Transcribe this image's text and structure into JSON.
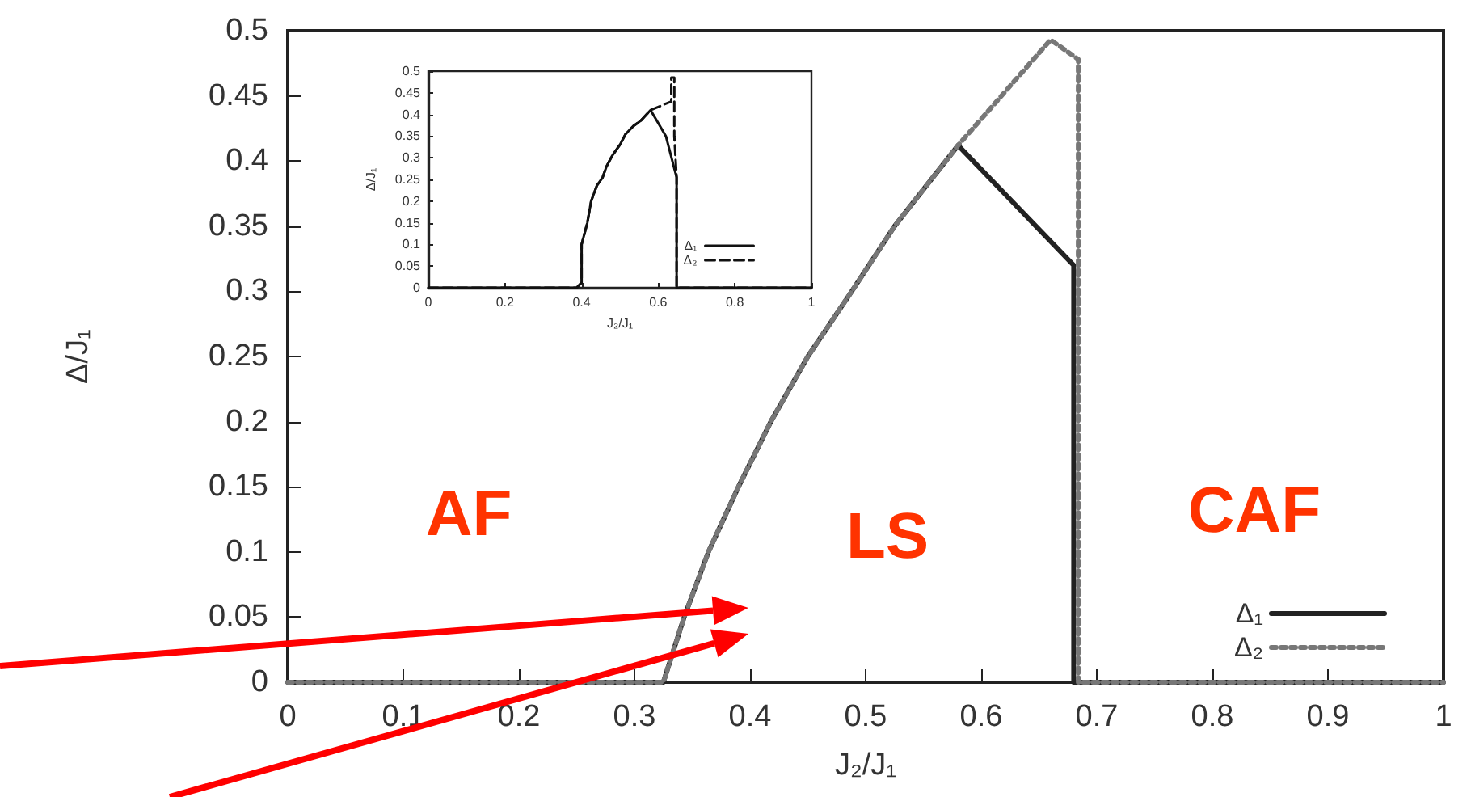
{
  "chart_data": [
    {
      "type": "line",
      "xlabel": "J₂/J₁",
      "ylabel": "Δ/J₁",
      "xlim": [
        0,
        1
      ],
      "ylim": [
        0,
        0.5
      ],
      "xticks": [
        0,
        0.1,
        0.2,
        0.3,
        0.4,
        0.5,
        0.6,
        0.7,
        0.8,
        0.9,
        1
      ],
      "yticks": [
        0,
        0.05,
        0.1,
        0.15,
        0.2,
        0.25,
        0.3,
        0.35,
        0.4,
        0.45,
        0.5
      ],
      "grid": false,
      "legend": "bottom right",
      "marker": "none",
      "annotations": [
        "AF",
        "LS",
        "CAF"
      ],
      "series": [
        {
          "name": "Δ₁",
          "color": "#222222",
          "line_style": "solid",
          "x": [
            0,
            0.325,
            0.343,
            0.364,
            0.39,
            0.418,
            0.45,
            0.488,
            0.525,
            0.58,
            0.68,
            0.68,
            1
          ],
          "values": [
            0,
            0,
            0.05,
            0.1,
            0.15,
            0.2,
            0.25,
            0.3,
            0.35,
            0.412,
            0.32,
            0,
            0
          ]
        },
        {
          "name": "Δ₂",
          "color": "#777777",
          "line_style": "dotted",
          "x": [
            0,
            0.325,
            0.343,
            0.364,
            0.39,
            0.418,
            0.45,
            0.488,
            0.525,
            0.58,
            0.66,
            0.684,
            0.684,
            1
          ],
          "values": [
            0,
            0,
            0.05,
            0.1,
            0.15,
            0.2,
            0.25,
            0.3,
            0.35,
            0.412,
            0.493,
            0.478,
            0,
            0
          ]
        }
      ]
    },
    {
      "type": "line",
      "xlabel": "J₂/J₁",
      "ylabel": "Δ/J₁",
      "xlim": [
        0,
        1
      ],
      "ylim": [
        0,
        0.5
      ],
      "xticks": [
        0,
        0.2,
        0.4,
        0.6,
        0.8,
        1
      ],
      "yticks": [
        0,
        0.05,
        0.1,
        0.15,
        0.2,
        0.25,
        0.3,
        0.35,
        0.4,
        0.45,
        0.5
      ],
      "grid": false,
      "legend": "bottom right",
      "marker": "none",
      "series": [
        {
          "name": "Δ₁",
          "color": "#111111",
          "line_style": "solid",
          "x": [
            0,
            0.387,
            0.4,
            0.4,
            0.415,
            0.425,
            0.44,
            0.455,
            0.465,
            0.48,
            0.5,
            0.515,
            0.535,
            0.555,
            0.58,
            0.6,
            0.62,
            0.648,
            0.648,
            1
          ],
          "values": [
            0,
            0,
            0.012,
            0.1,
            0.15,
            0.2,
            0.236,
            0.255,
            0.28,
            0.305,
            0.33,
            0.355,
            0.373,
            0.386,
            0.41,
            0.38,
            0.35,
            0.255,
            0,
            0
          ]
        },
        {
          "name": "Δ₂",
          "color": "#111111",
          "line_style": "dashed",
          "x": [
            0,
            0.387,
            0.4,
            0.4,
            0.415,
            0.425,
            0.44,
            0.455,
            0.465,
            0.48,
            0.5,
            0.515,
            0.535,
            0.555,
            0.58,
            0.634,
            0.634,
            0.642,
            0.642,
            0.648,
            0.648,
            1
          ],
          "values": [
            0,
            0,
            0.012,
            0.1,
            0.15,
            0.2,
            0.236,
            0.255,
            0.28,
            0.305,
            0.33,
            0.355,
            0.373,
            0.386,
            0.41,
            0.43,
            0.485,
            0.485,
            0.35,
            0.255,
            0,
            0
          ]
        }
      ]
    }
  ]
}
